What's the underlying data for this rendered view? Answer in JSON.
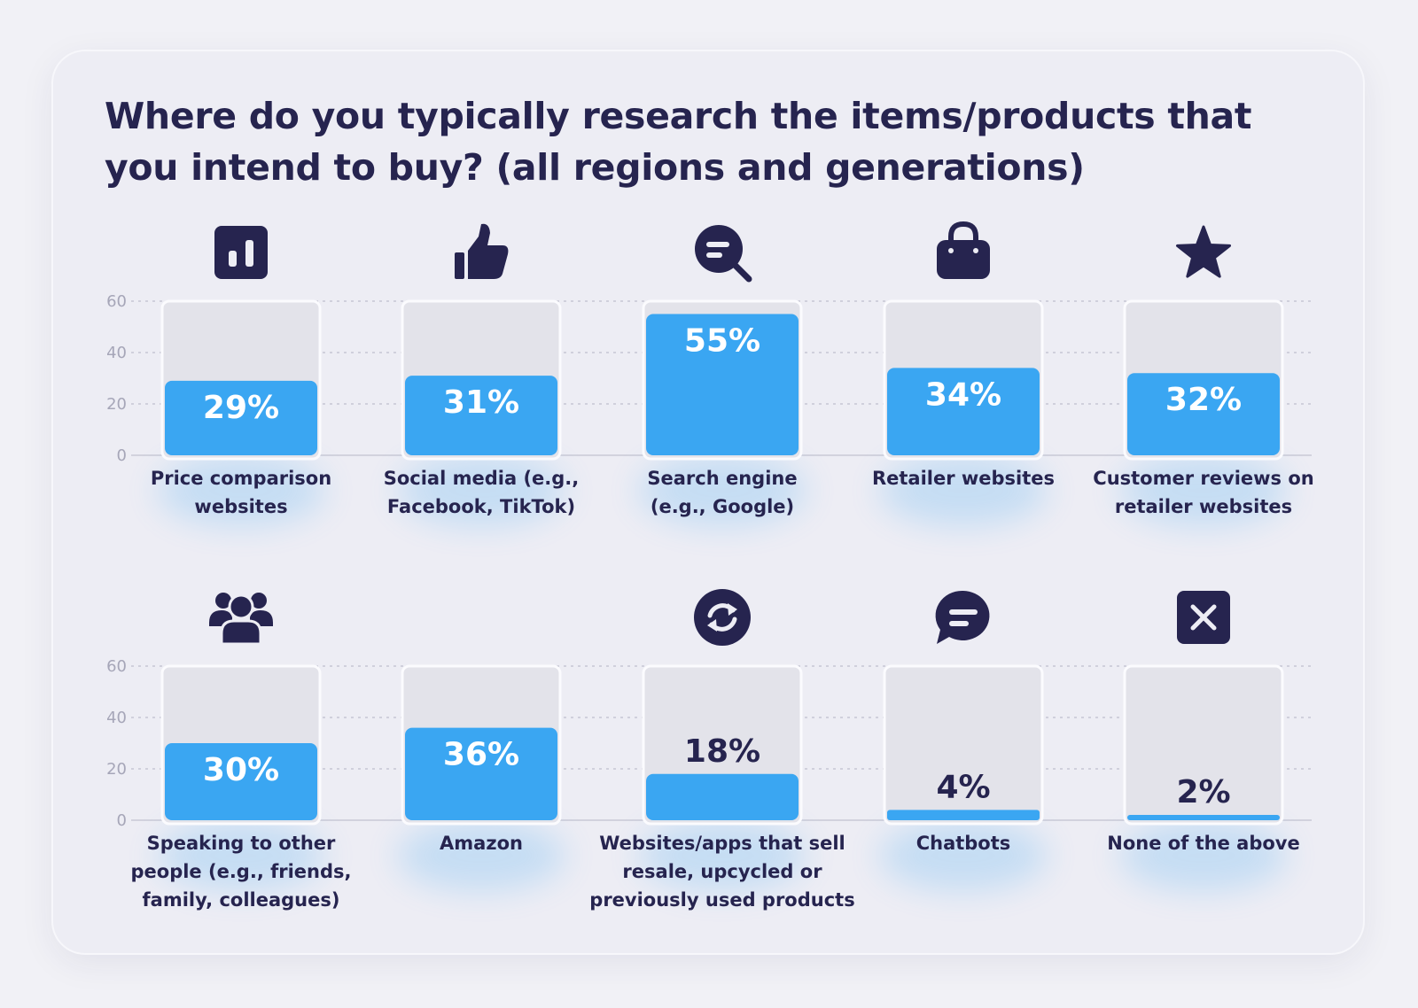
{
  "title": "Where do you typically research the items/products that you intend to buy? (all regions and generations)",
  "colors": {
    "bar": "#3aa6f2",
    "slot": "#e3e3ea",
    "text_dark": "#26244f",
    "text_light": "#ffffff",
    "axis": "#a6a6b8"
  },
  "chart_data": {
    "type": "bar",
    "title": "Where do you typically research the items/products that you intend to buy? (all regions and generations)",
    "ylim": [
      0,
      60
    ],
    "yticks": [
      "0",
      "20",
      "40",
      "60"
    ],
    "grid": true,
    "categories": [
      "Price comparison websites",
      "Social media (e.g., Facebook, TikTok)",
      "Search engine (e.g., Google)",
      "Retailer websites",
      "Customer reviews on retailer websites",
      "Speaking to other people (e.g., friends, family, colleagues)",
      "Amazon",
      "Websites/apps that sell resale, upcycled or previously used products",
      "Chatbots",
      "None of the above"
    ],
    "values": [
      29,
      31,
      55,
      34,
      32,
      30,
      36,
      18,
      4,
      2
    ],
    "data_labels": [
      "29%",
      "31%",
      "55%",
      "34%",
      "32%",
      "30%",
      "36%",
      "18%",
      "4%",
      "2%"
    ],
    "label_lines": [
      [
        "Price comparison",
        "websites"
      ],
      [
        "Social media (e.g.,",
        "Facebook, TikTok)"
      ],
      [
        "Search engine",
        "(e.g., Google)"
      ],
      [
        "Retailer websites"
      ],
      [
        "Customer reviews on",
        "retailer websites"
      ],
      [
        "Speaking to other",
        "people (e.g., friends,",
        "family, colleagues)"
      ],
      [
        "Amazon"
      ],
      [
        "Websites/apps that sell",
        "resale, upcycled or",
        "previously used products"
      ],
      [
        "Chatbots"
      ],
      [
        "None of the above"
      ]
    ],
    "icons": [
      "bar-chart-icon",
      "thumbs-up-icon",
      "search-icon",
      "shopping-bag-icon",
      "star-icon",
      "people-group-icon",
      "",
      "refresh-icon",
      "chat-bubble-icon",
      "close-icon"
    ]
  }
}
